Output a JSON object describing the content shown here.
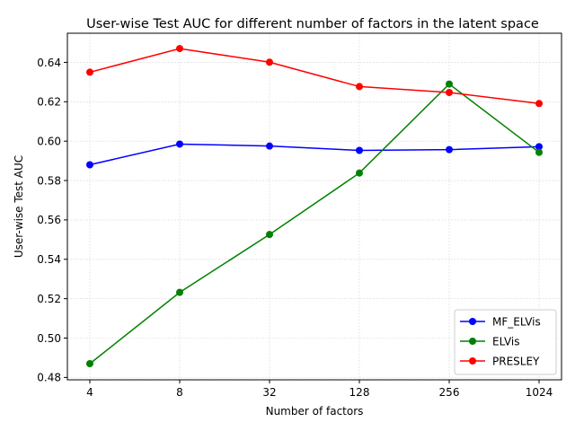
{
  "chart_data": {
    "type": "line",
    "title": "User-wise Test AUC for different number of factors in the latent space",
    "xlabel": "Number of factors",
    "ylabel": "User-wise Test AUC",
    "categories": [
      "4",
      "8",
      "32",
      "128",
      "256",
      "1024"
    ],
    "ylim": [
      0.4788,
      0.6548
    ],
    "yticks": [
      0.48,
      0.5,
      0.52,
      0.54,
      0.56,
      0.58,
      0.6,
      0.62,
      0.64
    ],
    "ytick_labels": [
      "0.48",
      "0.50",
      "0.52",
      "0.54",
      "0.56",
      "0.58",
      "0.60",
      "0.62",
      "0.64"
    ],
    "grid": true,
    "legend_position": "lower-right",
    "series": [
      {
        "name": "MF_ELVis",
        "color": "#0000ff",
        "values": [
          0.588,
          0.5985,
          0.5975,
          0.5953,
          0.5957,
          0.5972
        ]
      },
      {
        "name": "ELVis",
        "color": "#008000",
        "values": [
          0.487,
          0.5232,
          0.5526,
          0.5838,
          0.629,
          0.5943
        ]
      },
      {
        "name": "PRESLEY",
        "color": "#ff0000",
        "values": [
          0.635,
          0.647,
          0.6401,
          0.6277,
          0.6247,
          0.6191
        ]
      }
    ]
  }
}
